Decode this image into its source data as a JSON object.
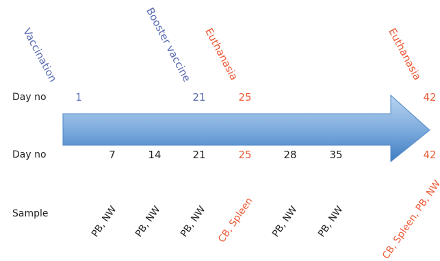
{
  "colors": {
    "blue_text": "#5a6bb3",
    "red_text": "#ec5b36",
    "black_text": "#222222",
    "arrow_light": "#a8c8ea",
    "arrow_dark": "#3c7cc3"
  },
  "row_labels": {
    "top": "Day no",
    "bottom": "Day no",
    "sample": "Sample"
  },
  "events": [
    {
      "label": "Vaccination",
      "day": "1",
      "color": "blue"
    },
    {
      "label": "Booster vaccine",
      "day": "21",
      "color": "blue"
    },
    {
      "label": "Euthanasia",
      "day": "25",
      "color": "red"
    },
    {
      "label": "Euthanasia",
      "day": "42",
      "color": "red"
    }
  ],
  "samples": [
    {
      "day": "7",
      "sample": "PB, NW",
      "color": "black"
    },
    {
      "day": "14",
      "sample": "PB, NW",
      "color": "black"
    },
    {
      "day": "21",
      "sample": "PB, NW",
      "color": "black"
    },
    {
      "day": "25",
      "sample": "CB, Spleen",
      "color": "red"
    },
    {
      "day": "28",
      "sample": "PB, NW",
      "color": "black"
    },
    {
      "day": "35",
      "sample": "PB, NW",
      "color": "black"
    },
    {
      "day": "42",
      "sample": "CB, Spleen, PB, NW",
      "color": "red"
    }
  ]
}
